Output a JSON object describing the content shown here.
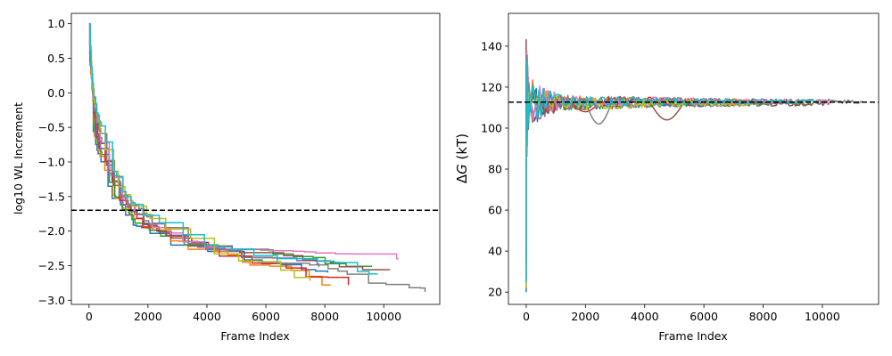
{
  "colors": [
    "#1f77b4",
    "#ff7f0e",
    "#2ca02c",
    "#d62728",
    "#9467bd",
    "#8c564b",
    "#e377c2",
    "#7f7f7f",
    "#bcbd22",
    "#17becf"
  ],
  "chart_data": [
    {
      "type": "line",
      "xlabel": "Frame Index",
      "ylabel": "log10 WL Increment",
      "xlim": [
        -600,
        11900
      ],
      "ylim": [
        -3.06,
        1.15
      ],
      "xticks": [
        0,
        2000,
        4000,
        6000,
        8000,
        10000
      ],
      "yticks": [
        1.0,
        0.5,
        0.0,
        -0.5,
        -1.0,
        -1.5,
        -2.0,
        -2.5,
        -3.0
      ],
      "ytick_labels": [
        "1.0",
        "0.5",
        "0.0",
        "−0.5",
        "−1.0",
        "−1.5",
        "−2.0",
        "−2.5",
        "−3.0"
      ],
      "reference_line": {
        "y": -1.699,
        "style": "dashed",
        "color": "#000000"
      },
      "series": [
        {
          "end_x": 8100,
          "end_y": -2.6
        },
        {
          "end_x": 8200,
          "end_y": -2.78
        },
        {
          "end_x": 9600,
          "end_y": -2.51
        },
        {
          "end_x": 8800,
          "end_y": -2.78
        },
        {
          "end_x": 7800,
          "end_y": -2.52
        },
        {
          "end_x": 10200,
          "end_y": -2.56
        },
        {
          "end_x": 10500,
          "end_y": -2.4
        },
        {
          "end_x": 11400,
          "end_y": -2.88
        },
        {
          "end_x": 7500,
          "end_y": -2.72
        },
        {
          "end_x": 9800,
          "end_y": -2.62
        }
      ]
    },
    {
      "type": "line",
      "xlabel": "Frame Index",
      "ylabel": "ΔG (kT)",
      "ylabel_parts": [
        "Δ",
        "G",
        " (kT)"
      ],
      "xlim": [
        -600,
        11900
      ],
      "ylim": [
        14,
        156
      ],
      "xticks": [
        0,
        2000,
        4000,
        6000,
        8000,
        10000
      ],
      "yticks": [
        20,
        40,
        60,
        80,
        100,
        120,
        140
      ],
      "reference_line": {
        "y": 112.7,
        "style": "dashed",
        "color": "#000000"
      },
      "series": [
        {
          "end_x": 8100,
          "final": 112
        },
        {
          "end_x": 8200,
          "final": 113
        },
        {
          "end_x": 9600,
          "final": 112
        },
        {
          "end_x": 8800,
          "final": 113
        },
        {
          "end_x": 7800,
          "final": 112
        },
        {
          "end_x": 10200,
          "final": 112
        },
        {
          "end_x": 10500,
          "final": 113
        },
        {
          "end_x": 11400,
          "final": 113
        },
        {
          "end_x": 7500,
          "final": 112
        },
        {
          "end_x": 9800,
          "final": 113
        }
      ]
    }
  ]
}
